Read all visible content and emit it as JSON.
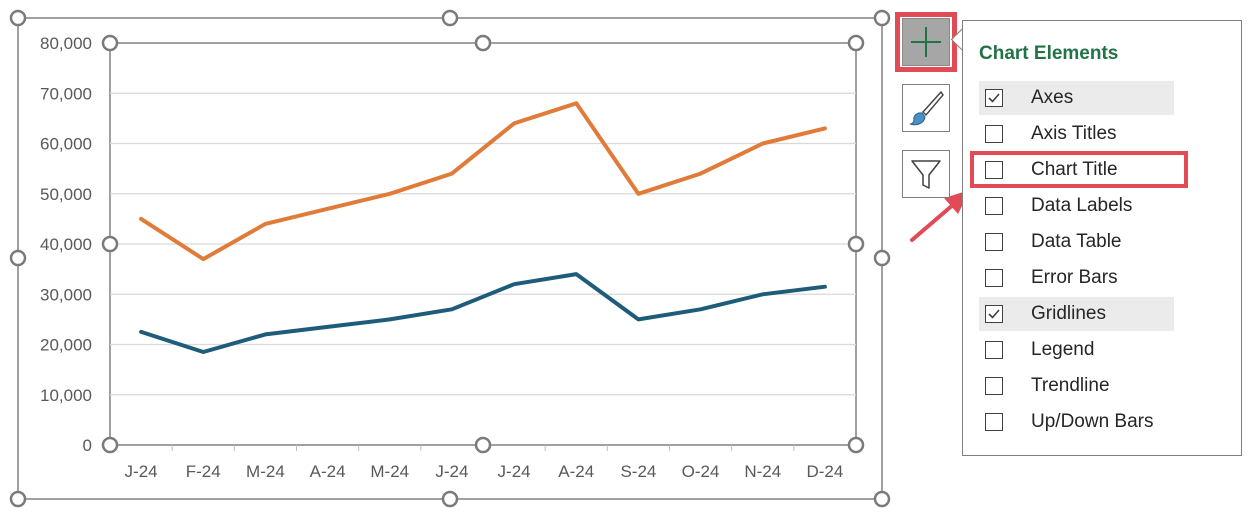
{
  "chart_data": {
    "type": "line",
    "categories": [
      "J-24",
      "F-24",
      "M-24",
      "A-24",
      "M-24",
      "J-24",
      "J-24",
      "A-24",
      "S-24",
      "O-24",
      "N-24",
      "D-24"
    ],
    "series": [
      {
        "values": [
          45000,
          37000,
          44000,
          47000,
          50000,
          54000,
          64000,
          68000,
          50000,
          54000,
          60000,
          63000
        ],
        "color": "#e07b39"
      },
      {
        "values": [
          22500,
          18500,
          22000,
          23500,
          25000,
          27000,
          32000,
          34000,
          25000,
          27000,
          30000,
          31500
        ],
        "color": "#1f5c7a"
      }
    ],
    "y_ticks": [
      "0",
      "10,000",
      "20,000",
      "30,000",
      "40,000",
      "50,000",
      "60,000",
      "70,000",
      "80,000"
    ],
    "ylim": [
      0,
      80000
    ],
    "grid": true,
    "legend": "none"
  },
  "toolbar": {
    "elements_icon": "plus-icon",
    "styles_icon": "paintbrush-icon",
    "filters_icon": "funnel-icon"
  },
  "panel": {
    "title": "Chart Elements",
    "options": [
      {
        "label": "Axes",
        "checked": true
      },
      {
        "label": "Axis Titles",
        "checked": false
      },
      {
        "label": "Chart Title",
        "checked": false
      },
      {
        "label": "Data Labels",
        "checked": false
      },
      {
        "label": "Data Table",
        "checked": false
      },
      {
        "label": "Error Bars",
        "checked": false
      },
      {
        "label": "Gridlines",
        "checked": true
      },
      {
        "label": "Legend",
        "checked": false
      },
      {
        "label": "Trendline",
        "checked": false
      },
      {
        "label": "Up/Down Bars",
        "checked": false
      }
    ]
  },
  "colors": {
    "accent_highlight": "#e04b55",
    "panel_title": "#217346"
  }
}
